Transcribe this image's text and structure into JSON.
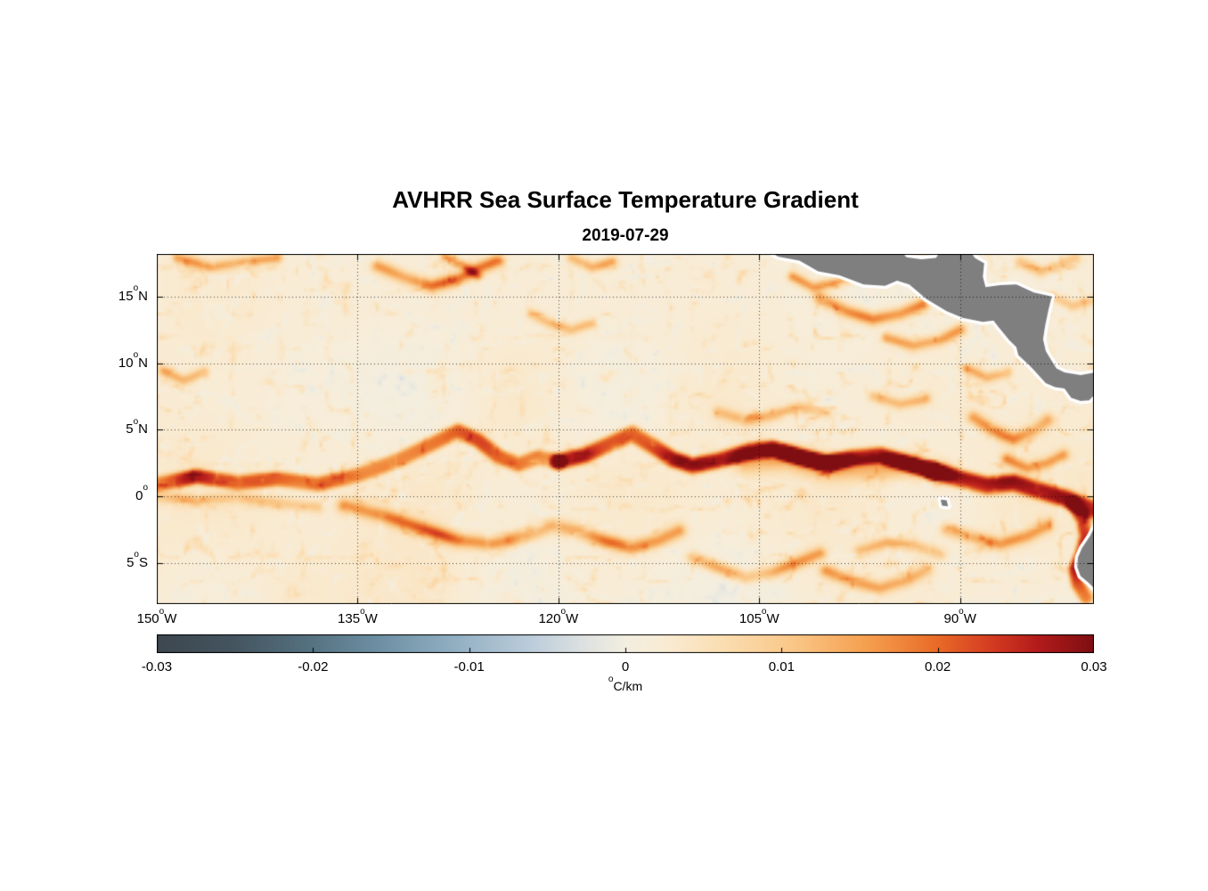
{
  "chart_data": {
    "type": "heatmap",
    "title": "AVHRR Sea Surface Temperature Gradient",
    "subtitle": "2019-07-29",
    "xlabel": "",
    "ylabel": "",
    "lon_range": [
      -150,
      -80
    ],
    "lat_range": [
      -8.1,
      18.2
    ],
    "grid": "dotted",
    "x_axis": {
      "tick_values": [
        -150,
        -135,
        -120,
        -105,
        -90
      ],
      "tick_labels": [
        "150°W",
        "135°W",
        "120°W",
        "105°W",
        "90°W"
      ]
    },
    "y_axis": {
      "tick_values": [
        15,
        10,
        5,
        0,
        -5
      ],
      "tick_labels": [
        "15°N",
        "10°N",
        "5°N",
        "0°",
        "5°S"
      ]
    },
    "colorbar": {
      "min": -0.03,
      "max": 0.03,
      "orientation": "horizontal",
      "tick_values": [
        -0.03,
        -0.02,
        -0.01,
        0,
        0.01,
        0.02,
        0.03
      ],
      "tick_labels": [
        "-0.03",
        "-0.02",
        "-0.01",
        "0",
        "0.01",
        "0.02",
        "0.03"
      ],
      "label": "°C/km",
      "colormap": [
        [
          0.0,
          "#3d474f"
        ],
        [
          0.08,
          "#44545f"
        ],
        [
          0.16,
          "#54707f"
        ],
        [
          0.24,
          "#6f91a5"
        ],
        [
          0.32,
          "#93b0c3"
        ],
        [
          0.4,
          "#bccddb"
        ],
        [
          0.46,
          "#e0e3e1"
        ],
        [
          0.5,
          "#f3eee0"
        ],
        [
          0.54,
          "#f9ecd5"
        ],
        [
          0.6,
          "#fbdfb4"
        ],
        [
          0.68,
          "#fac787"
        ],
        [
          0.76,
          "#f59e4d"
        ],
        [
          0.83,
          "#ea6d28"
        ],
        [
          0.89,
          "#d43c22"
        ],
        [
          0.94,
          "#b31b1b"
        ],
        [
          1.0,
          "#7e0e12"
        ]
      ]
    },
    "field": {
      "units": "°C/km",
      "background_value": 0.0018,
      "fronts": [
        {
          "pts": [
            [
              -150,
              0.9
            ],
            [
              -147,
              1.5
            ],
            [
              -144,
              1.0
            ],
            [
              -141,
              1.3
            ],
            [
              -138,
              0.9
            ],
            [
              -135,
              1.6
            ],
            [
              -132,
              2.7
            ],
            [
              -129.5,
              3.9
            ],
            [
              -127.5,
              4.9
            ],
            [
              -126,
              4.2
            ],
            [
              -124.5,
              3.0
            ],
            [
              -123,
              2.4
            ],
            [
              -121.5,
              2.9
            ],
            [
              -120,
              2.6
            ]
          ],
          "amp": 0.019,
          "width": 0.6
        },
        {
          "pts": [
            [
              -120,
              2.6
            ],
            [
              -118,
              3.1
            ],
            [
              -116,
              4.0
            ],
            [
              -114.5,
              4.7
            ],
            [
              -113,
              3.8
            ],
            [
              -111.5,
              2.8
            ],
            [
              -110,
              2.3
            ],
            [
              -108,
              2.7
            ],
            [
              -106,
              3.3
            ],
            [
              -104,
              3.6
            ],
            [
              -102,
              3.0
            ],
            [
              -100,
              2.5
            ],
            [
              -98,
              2.9
            ],
            [
              -96,
              3.1
            ],
            [
              -94,
              2.5
            ],
            [
              -92,
              1.9
            ]
          ],
          "amp": 0.024,
          "width": 0.65
        },
        {
          "pts": [
            [
              -106,
              2.6
            ],
            [
              -103,
              2.9
            ],
            [
              -100,
              2.2
            ],
            [
              -97,
              2.1
            ],
            [
              -94,
              2.3
            ],
            [
              -91.5,
              1.7
            ]
          ],
          "amp": 0.011,
          "width": 0.9
        },
        {
          "pts": [
            [
              -92,
              1.9
            ],
            [
              -90,
              1.3
            ],
            [
              -88,
              0.8
            ],
            [
              -86,
              1.0
            ],
            [
              -84,
              0.4
            ],
            [
              -82,
              -0.2
            ],
            [
              -80.8,
              -0.7
            ],
            [
              -80,
              -1.0
            ]
          ],
          "amp": 0.025,
          "width": 0.7
        },
        {
          "pts": [
            [
              -81.5,
              -0.6
            ],
            [
              -80.8,
              -1.8
            ],
            [
              -80.6,
              -3.0
            ],
            [
              -80.9,
              -4.3
            ],
            [
              -81.4,
              -5.5
            ],
            [
              -81.2,
              -6.6
            ],
            [
              -80.6,
              -7.6
            ]
          ],
          "amp": 0.02,
          "width": 0.55
        },
        {
          "pts": [
            [
              -136,
              -0.7
            ],
            [
              -133,
              -1.5
            ],
            [
              -130,
              -2.5
            ],
            [
              -127.5,
              -3.3
            ],
            [
              -125,
              -3.6
            ],
            [
              -122.5,
              -3.0
            ],
            [
              -120.5,
              -2.2
            ],
            [
              -118.5,
              -2.6
            ],
            [
              -116.5,
              -3.4
            ],
            [
              -114.5,
              -3.9
            ],
            [
              -112.5,
              -3.3
            ],
            [
              -111,
              -2.6
            ]
          ],
          "amp": 0.016,
          "width": 0.55
        },
        {
          "pts": [
            [
              -150,
              0.0
            ],
            [
              -147,
              -0.4
            ],
            [
              -144,
              -0.1
            ],
            [
              -141,
              -0.5
            ],
            [
              -138,
              -0.8
            ]
          ],
          "amp": 0.009,
          "width": 0.45
        },
        {
          "pts": [
            [
              -110,
              -4.6
            ],
            [
              -108,
              -5.4
            ],
            [
              -106,
              -6.1
            ],
            [
              -104,
              -5.7
            ],
            [
              -102,
              -4.9
            ],
            [
              -100.5,
              -4.3
            ]
          ],
          "amp": 0.012,
          "width": 0.5
        },
        {
          "pts": [
            [
              -100,
              -5.6
            ],
            [
              -98,
              -6.4
            ],
            [
              -96,
              -6.9
            ],
            [
              -94,
              -6.3
            ],
            [
              -92.5,
              -5.5
            ]
          ],
          "amp": 0.013,
          "width": 0.5
        },
        {
          "pts": [
            [
              -97.5,
              -4.1
            ],
            [
              -95.5,
              -3.5
            ],
            [
              -93.5,
              -3.7
            ],
            [
              -91.5,
              -4.3
            ]
          ],
          "amp": 0.011,
          "width": 0.45
        },
        {
          "pts": [
            [
              -91,
              -2.5
            ],
            [
              -89,
              -3.1
            ],
            [
              -87,
              -3.6
            ],
            [
              -85,
              -3.0
            ],
            [
              -83.5,
              -2.2
            ]
          ],
          "amp": 0.013,
          "width": 0.5
        },
        {
          "pts": [
            [
              -89,
              5.9
            ],
            [
              -87.5,
              4.9
            ],
            [
              -86,
              4.3
            ],
            [
              -84.5,
              4.9
            ],
            [
              -83.5,
              5.7
            ]
          ],
          "amp": 0.014,
          "width": 0.5
        },
        {
          "pts": [
            [
              -86.5,
              2.8
            ],
            [
              -85,
              2.1
            ],
            [
              -83.5,
              2.5
            ],
            [
              -82.3,
              3.1
            ]
          ],
          "amp": 0.012,
          "width": 0.45
        },
        {
          "pts": [
            [
              -100.5,
              14.9
            ],
            [
              -98.5,
              13.9
            ],
            [
              -96.5,
              13.3
            ],
            [
              -94.5,
              13.7
            ],
            [
              -92.8,
              14.4
            ]
          ],
          "amp": 0.015,
          "width": 0.5
        },
        {
          "pts": [
            [
              -95.5,
              11.9
            ],
            [
              -93.5,
              11.3
            ],
            [
              -91.5,
              11.7
            ],
            [
              -90,
              12.5
            ]
          ],
          "amp": 0.013,
          "width": 0.45
        },
        {
          "pts": [
            [
              -102.5,
              16.5
            ],
            [
              -101,
              15.7
            ],
            [
              -99.5,
              16.0
            ],
            [
              -98,
              16.4
            ]
          ],
          "amp": 0.013,
          "width": 0.4
        },
        {
          "pts": [
            [
              -108,
              6.3
            ],
            [
              -106,
              5.7
            ],
            [
              -104,
              6.1
            ],
            [
              -102,
              6.7
            ],
            [
              -100,
              6.3
            ]
          ],
          "amp": 0.01,
          "width": 0.45
        },
        {
          "pts": [
            [
              -96.5,
              7.5
            ],
            [
              -94.5,
              6.9
            ],
            [
              -92.5,
              7.3
            ]
          ],
          "amp": 0.009,
          "width": 0.4
        },
        {
          "pts": [
            [
              -89.5,
              9.6
            ],
            [
              -88,
              8.9
            ],
            [
              -86.5,
              9.3
            ]
          ],
          "amp": 0.011,
          "width": 0.4
        },
        {
          "pts": [
            [
              -133.5,
              17.3
            ],
            [
              -131.5,
              16.4
            ],
            [
              -129.5,
              15.8
            ],
            [
              -127.5,
              16.3
            ],
            [
              -126,
              17.1
            ],
            [
              -124.5,
              17.7
            ]
          ],
          "amp": 0.016,
          "width": 0.5
        },
        {
          "pts": [
            [
              -128.5,
              18.0
            ],
            [
              -127,
              17.3
            ],
            [
              -126,
              16.5
            ]
          ],
          "amp": 0.012,
          "width": 0.35
        },
        {
          "pts": [
            [
              -148.5,
              17.9
            ],
            [
              -146,
              17.2
            ],
            [
              -143.5,
              17.6
            ],
            [
              -141,
              17.9
            ]
          ],
          "amp": 0.012,
          "width": 0.4
        },
        {
          "pts": [
            [
              -119,
              17.9
            ],
            [
              -117.5,
              17.2
            ],
            [
              -116,
              17.6
            ]
          ],
          "amp": 0.012,
          "width": 0.4
        },
        {
          "pts": [
            [
              -122,
              13.7
            ],
            [
              -120.5,
              12.9
            ],
            [
              -119,
              12.5
            ],
            [
              -117.5,
              13.0
            ]
          ],
          "amp": 0.009,
          "width": 0.4
        },
        {
          "pts": [
            [
              -149.5,
              9.4
            ],
            [
              -148,
              8.7
            ],
            [
              -146.5,
              9.3
            ]
          ],
          "amp": 0.01,
          "width": 0.4
        },
        {
          "pts": [
            [
              -85.5,
              17.6
            ],
            [
              -84,
              16.9
            ],
            [
              -82.8,
              17.3
            ],
            [
              -81.4,
              17.9
            ]
          ],
          "amp": 0.011,
          "width": 0.45
        },
        {
          "pts": [
            [
              -83,
              15.0
            ],
            [
              -81.6,
              14.3
            ],
            [
              -80.3,
              14.7
            ]
          ],
          "amp": 0.009,
          "width": 0.4
        }
      ]
    },
    "land": {
      "color": "#7f7f7f",
      "coast_margin_color": "#ffffff",
      "polygons": {
        "central_america": [
          [
            -104.4,
            18.5
          ],
          [
            -103.6,
            18.0
          ],
          [
            -102.0,
            17.7
          ],
          [
            -100.6,
            16.9
          ],
          [
            -99.0,
            16.6
          ],
          [
            -97.2,
            15.9
          ],
          [
            -95.6,
            15.8
          ],
          [
            -94.7,
            16.2
          ],
          [
            -93.8,
            15.9
          ],
          [
            -92.5,
            14.8
          ],
          [
            -91.0,
            13.9
          ],
          [
            -89.8,
            13.4
          ],
          [
            -88.3,
            13.1
          ],
          [
            -87.5,
            13.2
          ],
          [
            -87.2,
            12.8
          ],
          [
            -86.3,
            11.7
          ],
          [
            -85.8,
            11.2
          ],
          [
            -85.65,
            10.6
          ],
          [
            -84.9,
            9.9
          ],
          [
            -84.6,
            9.6
          ],
          [
            -83.6,
            8.5
          ],
          [
            -82.9,
            8.2
          ],
          [
            -82.2,
            8.1
          ],
          [
            -81.7,
            7.4
          ],
          [
            -81.0,
            7.15
          ],
          [
            -80.35,
            7.2
          ],
          [
            -80.0,
            7.6
          ],
          [
            -79.85,
            8.2
          ],
          [
            -79.4,
            8.6
          ],
          [
            -78.8,
            8.9
          ],
          [
            -78.8,
            9.7
          ],
          [
            -79.9,
            9.3
          ],
          [
            -81.0,
            9.1
          ],
          [
            -82.2,
            9.3
          ],
          [
            -82.8,
            9.6
          ],
          [
            -83.3,
            10.4
          ],
          [
            -83.6,
            10.9
          ],
          [
            -83.8,
            11.8
          ],
          [
            -83.65,
            12.8
          ],
          [
            -83.4,
            14.0
          ],
          [
            -83.15,
            15.0
          ],
          [
            -84.5,
            15.3
          ],
          [
            -85.8,
            15.9
          ],
          [
            -87.0,
            15.85
          ],
          [
            -88.1,
            15.7
          ],
          [
            -88.3,
            16.5
          ],
          [
            -88.2,
            17.5
          ],
          [
            -88.9,
            17.9
          ],
          [
            -89.3,
            18.5
          ],
          [
            -91.4,
            18.5
          ],
          [
            -91.8,
            17.9
          ],
          [
            -92.9,
            17.8
          ],
          [
            -94.0,
            17.95
          ],
          [
            -94.5,
            18.5
          ]
        ],
        "south_america": [
          [
            -79.2,
            1.9
          ],
          [
            -79.7,
            0.9
          ],
          [
            -79.8,
            -0.5
          ],
          [
            -79.75,
            -1.5
          ],
          [
            -79.9,
            -2.2
          ],
          [
            -80.3,
            -3.0
          ],
          [
            -80.9,
            -3.9
          ],
          [
            -81.2,
            -4.6
          ],
          [
            -81.25,
            -5.3
          ],
          [
            -81.0,
            -6.0
          ],
          [
            -80.4,
            -6.5
          ],
          [
            -79.9,
            -7.0
          ],
          [
            -79.4,
            -7.7
          ],
          [
            -79.1,
            -8.4
          ],
          [
            -77.5,
            -8.4
          ],
          [
            -77.5,
            1.9
          ]
        ],
        "galapagos": [
          [
            -91.45,
            -0.25
          ],
          [
            -91.0,
            -0.3
          ],
          [
            -90.9,
            -0.75
          ],
          [
            -91.35,
            -0.7
          ]
        ]
      }
    }
  }
}
